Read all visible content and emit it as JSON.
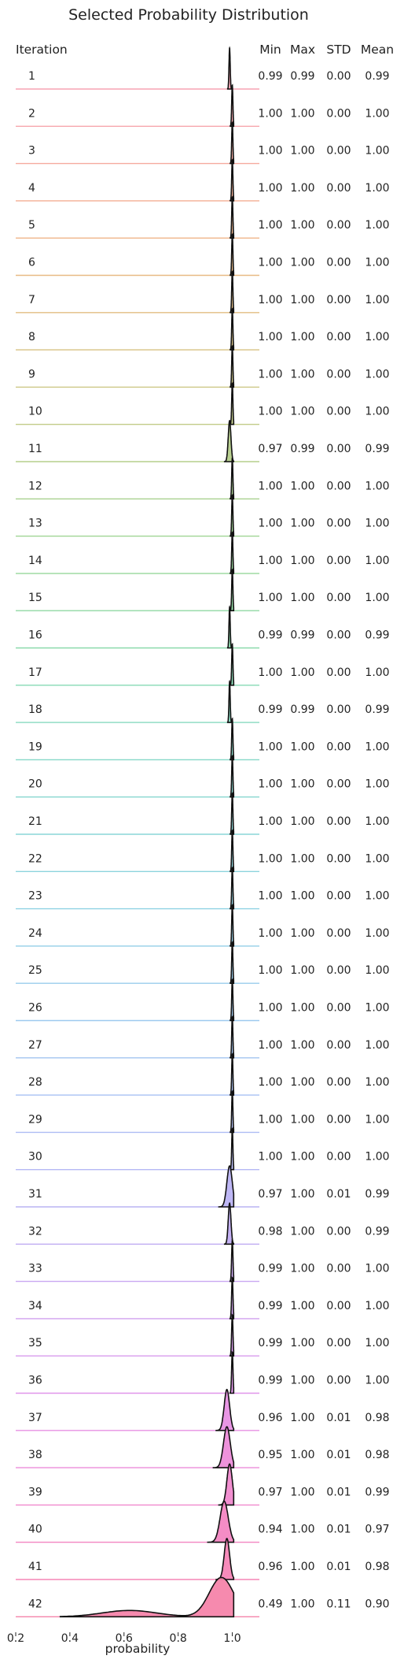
{
  "chart_data": {
    "type": "ridgeline",
    "title": "Selected Probability Distribution",
    "row_header": "Iteration",
    "stat_headers": [
      "Min",
      "Max",
      "STD",
      "Mean"
    ],
    "xlabel": "probability",
    "xlim": [
      0.2,
      1.1
    ],
    "xticks": [
      "0.2",
      "0.4",
      "0.6",
      "0.8",
      "1.0"
    ],
    "xtick_values": [
      0.2,
      0.4,
      0.6,
      0.8,
      1.0
    ],
    "grid": false,
    "rows": [
      {
        "iteration": "1",
        "min": "0.99",
        "max": "0.99",
        "std": "0.00",
        "mean": "0.99",
        "color": "#f7a3b3"
      },
      {
        "iteration": "2",
        "min": "1.00",
        "max": "1.00",
        "std": "0.00",
        "mean": "1.00",
        "color": "#f7a6ad"
      },
      {
        "iteration": "3",
        "min": "1.00",
        "max": "1.00",
        "std": "0.00",
        "mean": "1.00",
        "color": "#f6aa9f"
      },
      {
        "iteration": "4",
        "min": "1.00",
        "max": "1.00",
        "std": "0.00",
        "mean": "1.00",
        "color": "#f4ae93"
      },
      {
        "iteration": "5",
        "min": "1.00",
        "max": "1.00",
        "std": "0.00",
        "mean": "1.00",
        "color": "#efb48a"
      },
      {
        "iteration": "6",
        "min": "1.00",
        "max": "1.00",
        "std": "0.00",
        "mean": "1.00",
        "color": "#e8b984"
      },
      {
        "iteration": "7",
        "min": "1.00",
        "max": "1.00",
        "std": "0.00",
        "mean": "1.00",
        "color": "#e2bd82"
      },
      {
        "iteration": "8",
        "min": "1.00",
        "max": "1.00",
        "std": "0.00",
        "mean": "1.00",
        "color": "#d8c283"
      },
      {
        "iteration": "9",
        "min": "1.00",
        "max": "1.00",
        "std": "0.00",
        "mean": "1.00",
        "color": "#cdc785"
      },
      {
        "iteration": "10",
        "min": "1.00",
        "max": "1.00",
        "std": "0.00",
        "mean": "1.00",
        "color": "#c2cb88"
      },
      {
        "iteration": "11",
        "min": "0.97",
        "max": "0.99",
        "std": "0.00",
        "mean": "0.99",
        "color": "#b6cf8c"
      },
      {
        "iteration": "12",
        "min": "1.00",
        "max": "1.00",
        "std": "0.00",
        "mean": "1.00",
        "color": "#aad290"
      },
      {
        "iteration": "13",
        "min": "1.00",
        "max": "1.00",
        "std": "0.00",
        "mean": "1.00",
        "color": "#9fd594"
      },
      {
        "iteration": "14",
        "min": "1.00",
        "max": "1.00",
        "std": "0.00",
        "mean": "1.00",
        "color": "#96d79a"
      },
      {
        "iteration": "15",
        "min": "1.00",
        "max": "1.00",
        "std": "0.00",
        "mean": "1.00",
        "color": "#8fd8a2"
      },
      {
        "iteration": "16",
        "min": "0.99",
        "max": "0.99",
        "std": "0.00",
        "mean": "0.99",
        "color": "#8ad9ab"
      },
      {
        "iteration": "17",
        "min": "1.00",
        "max": "1.00",
        "std": "0.00",
        "mean": "1.00",
        "color": "#87d9b5"
      },
      {
        "iteration": "18",
        "min": "0.99",
        "max": "0.99",
        "std": "0.00",
        "mean": "0.99",
        "color": "#86d9bf"
      },
      {
        "iteration": "19",
        "min": "1.00",
        "max": "1.00",
        "std": "0.00",
        "mean": "1.00",
        "color": "#86d8c8"
      },
      {
        "iteration": "20",
        "min": "1.00",
        "max": "1.00",
        "std": "0.00",
        "mean": "1.00",
        "color": "#88d7d0"
      },
      {
        "iteration": "21",
        "min": "1.00",
        "max": "1.00",
        "std": "0.00",
        "mean": "1.00",
        "color": "#8ad6d7"
      },
      {
        "iteration": "22",
        "min": "1.00",
        "max": "1.00",
        "std": "0.00",
        "mean": "1.00",
        "color": "#8dd4dd"
      },
      {
        "iteration": "23",
        "min": "1.00",
        "max": "1.00",
        "std": "0.00",
        "mean": "1.00",
        "color": "#90d2e3"
      },
      {
        "iteration": "24",
        "min": "1.00",
        "max": "1.00",
        "std": "0.00",
        "mean": "1.00",
        "color": "#94cfe8"
      },
      {
        "iteration": "25",
        "min": "1.00",
        "max": "1.00",
        "std": "0.00",
        "mean": "1.00",
        "color": "#98ccec"
      },
      {
        "iteration": "26",
        "min": "1.00",
        "max": "1.00",
        "std": "0.00",
        "mean": "1.00",
        "color": "#9dc9ef"
      },
      {
        "iteration": "27",
        "min": "1.00",
        "max": "1.00",
        "std": "0.00",
        "mean": "1.00",
        "color": "#a2c5f1"
      },
      {
        "iteration": "28",
        "min": "1.00",
        "max": "1.00",
        "std": "0.00",
        "mean": "1.00",
        "color": "#a8c1f3"
      },
      {
        "iteration": "29",
        "min": "1.00",
        "max": "1.00",
        "std": "0.00",
        "mean": "1.00",
        "color": "#aebdf4"
      },
      {
        "iteration": "30",
        "min": "1.00",
        "max": "1.00",
        "std": "0.00",
        "mean": "1.00",
        "color": "#b4b8f4"
      },
      {
        "iteration": "31",
        "min": "0.97",
        "max": "1.00",
        "std": "0.01",
        "mean": "0.99",
        "color": "#bab3f4"
      },
      {
        "iteration": "32",
        "min": "0.98",
        "max": "1.00",
        "std": "0.00",
        "mean": "0.99",
        "color": "#c1adf3"
      },
      {
        "iteration": "33",
        "min": "0.99",
        "max": "1.00",
        "std": "0.00",
        "mean": "1.00",
        "color": "#c9a7f1"
      },
      {
        "iteration": "34",
        "min": "0.99",
        "max": "1.00",
        "std": "0.00",
        "mean": "1.00",
        "color": "#d1a1ef"
      },
      {
        "iteration": "35",
        "min": "0.99",
        "max": "1.00",
        "std": "0.00",
        "mean": "1.00",
        "color": "#d89bed"
      },
      {
        "iteration": "36",
        "min": "0.99",
        "max": "1.00",
        "std": "0.00",
        "mean": "1.00",
        "color": "#e095ea"
      },
      {
        "iteration": "37",
        "min": "0.96",
        "max": "1.00",
        "std": "0.01",
        "mean": "0.98",
        "color": "#e790e3"
      },
      {
        "iteration": "38",
        "min": "0.95",
        "max": "1.00",
        "std": "0.01",
        "mean": "0.98",
        "color": "#ec8cd9"
      },
      {
        "iteration": "39",
        "min": "0.97",
        "max": "1.00",
        "std": "0.01",
        "mean": "0.99",
        "color": "#f089ce"
      },
      {
        "iteration": "40",
        "min": "0.94",
        "max": "1.00",
        "std": "0.01",
        "mean": "0.97",
        "color": "#f386c2"
      },
      {
        "iteration": "41",
        "min": "0.96",
        "max": "1.00",
        "std": "0.01",
        "mean": "0.98",
        "color": "#f585b6"
      },
      {
        "iteration": "42",
        "min": "0.49",
        "max": "1.00",
        "std": "0.11",
        "mean": "0.90",
        "color": "#f584aa"
      }
    ]
  }
}
